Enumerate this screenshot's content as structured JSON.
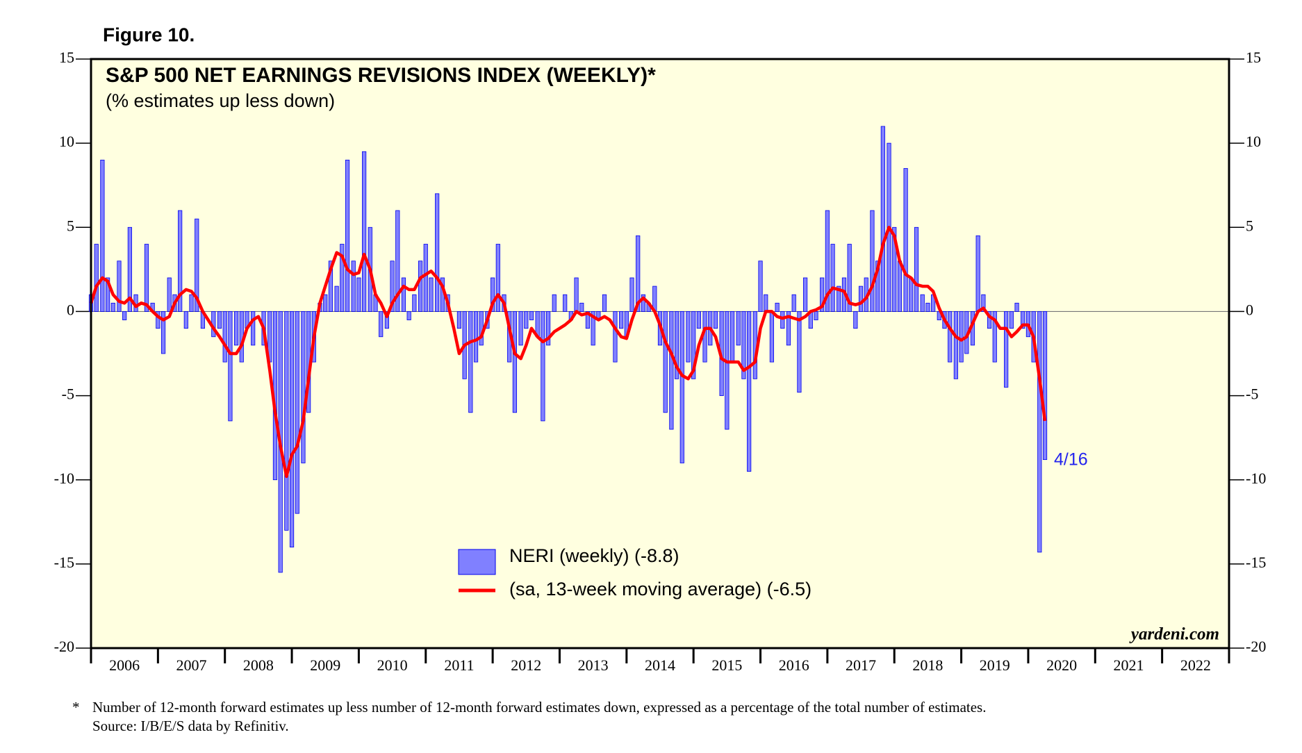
{
  "chart_data": {
    "type": "combo",
    "figure_label": "Figure 10.",
    "title": "S&P 500 NET EARNINGS REVISIONS INDEX (WEEKLY)*",
    "subtitle": "(% estimates up less down)",
    "annotation": "4/16",
    "credit": "yardeni.com",
    "footnote": [
      "*",
      "Number of 12-month forward estimates up less number of 12-month forward estimates down, expressed as a percentage of the total number of estimates.",
      "Source: I/B/E/S data by Refinitiv."
    ],
    "background": "#ffffe0",
    "ylim": [
      -20,
      15
    ],
    "yticks": [
      -20,
      -15,
      -10,
      -5,
      0,
      5,
      10,
      15
    ],
    "xlim": [
      2006,
      2023
    ],
    "xticks": [
      2006,
      2007,
      2008,
      2009,
      2010,
      2011,
      2012,
      2013,
      2014,
      2015,
      2016,
      2017,
      2018,
      2019,
      2020,
      2021,
      2022,
      2023
    ],
    "year_labels": [
      {
        "value": 2006.5,
        "label": "2006"
      },
      {
        "value": 2007.5,
        "label": "2007"
      },
      {
        "value": 2008.5,
        "label": "2008"
      },
      {
        "value": 2009.5,
        "label": "2009"
      },
      {
        "value": 2010.5,
        "label": "2010"
      },
      {
        "value": 2011.5,
        "label": "2011"
      },
      {
        "value": 2012.5,
        "label": "2012"
      },
      {
        "value": 2013.5,
        "label": "2013"
      },
      {
        "value": 2014.5,
        "label": "2014"
      },
      {
        "value": 2015.5,
        "label": "2015"
      },
      {
        "value": 2016.5,
        "label": "2016"
      },
      {
        "value": 2017.5,
        "label": "2017"
      },
      {
        "value": 2018.5,
        "label": "2018"
      },
      {
        "value": 2019.5,
        "label": "2019"
      },
      {
        "value": 2020.5,
        "label": "2020"
      },
      {
        "value": 2021.5,
        "label": "2021"
      },
      {
        "value": 2022.5,
        "label": "2022"
      }
    ],
    "x": [
      2006.0,
      2006.08,
      2006.17,
      2006.25,
      2006.33,
      2006.42,
      2006.5,
      2006.58,
      2006.67,
      2006.75,
      2006.83,
      2006.92,
      2007.0,
      2007.08,
      2007.17,
      2007.25,
      2007.33,
      2007.42,
      2007.5,
      2007.58,
      2007.67,
      2007.75,
      2007.83,
      2007.92,
      2008.0,
      2008.08,
      2008.17,
      2008.25,
      2008.33,
      2008.42,
      2008.5,
      2008.58,
      2008.67,
      2008.75,
      2008.83,
      2008.92,
      2009.0,
      2009.08,
      2009.17,
      2009.25,
      2009.33,
      2009.42,
      2009.5,
      2009.58,
      2009.67,
      2009.75,
      2009.83,
      2009.92,
      2010.0,
      2010.08,
      2010.17,
      2010.25,
      2010.33,
      2010.42,
      2010.5,
      2010.58,
      2010.67,
      2010.75,
      2010.83,
      2010.92,
      2011.0,
      2011.08,
      2011.17,
      2011.25,
      2011.33,
      2011.42,
      2011.5,
      2011.58,
      2011.67,
      2011.75,
      2011.83,
      2011.92,
      2012.0,
      2012.08,
      2012.17,
      2012.25,
      2012.33,
      2012.42,
      2012.5,
      2012.58,
      2012.67,
      2012.75,
      2012.83,
      2012.92,
      2013.0,
      2013.08,
      2013.17,
      2013.25,
      2013.33,
      2013.42,
      2013.5,
      2013.58,
      2013.67,
      2013.75,
      2013.83,
      2013.92,
      2014.0,
      2014.08,
      2014.17,
      2014.25,
      2014.33,
      2014.42,
      2014.5,
      2014.58,
      2014.67,
      2014.75,
      2014.83,
      2014.92,
      2015.0,
      2015.08,
      2015.17,
      2015.25,
      2015.33,
      2015.42,
      2015.5,
      2015.58,
      2015.67,
      2015.75,
      2015.83,
      2015.92,
      2016.0,
      2016.08,
      2016.17,
      2016.25,
      2016.33,
      2016.42,
      2016.5,
      2016.58,
      2016.67,
      2016.75,
      2016.83,
      2016.92,
      2017.0,
      2017.08,
      2017.17,
      2017.25,
      2017.33,
      2017.42,
      2017.5,
      2017.58,
      2017.67,
      2017.75,
      2017.83,
      2017.92,
      2018.0,
      2018.08,
      2018.17,
      2018.25,
      2018.33,
      2018.42,
      2018.5,
      2018.58,
      2018.67,
      2018.75,
      2018.83,
      2018.92,
      2019.0,
      2019.08,
      2019.17,
      2019.25,
      2019.33,
      2019.42,
      2019.5,
      2019.58,
      2019.67,
      2019.75,
      2019.83,
      2019.92,
      2020.0,
      2020.08,
      2020.17,
      2020.25
    ],
    "series": [
      {
        "name": "NERI (weekly) (-8.8)",
        "type": "bar",
        "color": "#8080ff",
        "edge": "#0000ee",
        "values": [
          1,
          4,
          9,
          2,
          0.5,
          3,
          -0.5,
          5,
          1,
          0,
          4,
          0.5,
          -1,
          -2.5,
          2,
          1,
          6,
          -1,
          1,
          5.5,
          -1,
          0,
          -1.5,
          -1,
          -3,
          -6.5,
          -2,
          -3,
          -1,
          -2,
          0,
          -2,
          -3,
          -10,
          -15.5,
          -13,
          -14,
          -12,
          -9,
          -6,
          -3,
          0.5,
          1,
          3,
          1.5,
          4,
          9,
          3,
          2,
          9.5,
          5,
          1,
          -1.5,
          -1,
          3,
          6,
          2,
          -0.5,
          1,
          3,
          4,
          2,
          7,
          2,
          1,
          0,
          -1,
          -4,
          -6,
          -3,
          -2,
          -1,
          2,
          4,
          1,
          -3,
          -6,
          -2,
          -1,
          -0.5,
          -1.5,
          -6.5,
          -2,
          1,
          0,
          1,
          -0.5,
          2,
          0.5,
          -1,
          -2,
          -0.5,
          1,
          0,
          -3,
          -1,
          -1.5,
          2,
          4.5,
          1,
          0.5,
          1.5,
          -2,
          -6,
          -7,
          -4,
          -9,
          -3,
          -4,
          -1,
          -3,
          -2,
          -1,
          -5,
          -7,
          -3,
          -2,
          -4,
          -9.5,
          -4,
          3,
          1,
          -3,
          0.5,
          -1,
          -2,
          1,
          -4.8,
          2,
          -1,
          -0.5,
          2,
          6,
          4,
          1.5,
          2,
          4,
          -1,
          1.5,
          2,
          6,
          3,
          11,
          10,
          5,
          3,
          8.5,
          2,
          5,
          1,
          0.5,
          1,
          -0.5,
          -1,
          -3,
          -4,
          -3,
          -2.5,
          -2,
          4.5,
          1,
          -1,
          -3,
          0,
          -4.5,
          -1,
          0.5,
          -1,
          -1.5,
          -3,
          -14.3,
          -8.8
        ]
      },
      {
        "name": "(sa, 13-week moving average) (-6.5)",
        "type": "line",
        "color": "#ff0000",
        "values": [
          0.5,
          1.5,
          2,
          1.8,
          1,
          0.6,
          0.5,
          0.8,
          0.3,
          0.5,
          0.4,
          0,
          -0.3,
          -0.5,
          -0.3,
          0.5,
          1,
          1.3,
          1.2,
          0.8,
          0,
          -0.5,
          -1,
          -1.5,
          -2,
          -2.5,
          -2.5,
          -2,
          -1,
          -0.5,
          -0.3,
          -1,
          -3.5,
          -6,
          -8,
          -9.8,
          -8.5,
          -8,
          -6.5,
          -4,
          -1.5,
          0.5,
          1.5,
          2.5,
          3.5,
          3.3,
          2.5,
          2.2,
          2.3,
          3.4,
          2.5,
          1,
          0.5,
          -0.3,
          0.5,
          1,
          1.5,
          1.3,
          1.3,
          2,
          2.2,
          2.4,
          2,
          1.5,
          0.5,
          -1,
          -2.5,
          -2,
          -1.8,
          -1.7,
          -1.5,
          -0.5,
          0.5,
          1,
          0.5,
          -1,
          -2.5,
          -2.8,
          -2,
          -1,
          -1.5,
          -1.8,
          -1.6,
          -1.2,
          -1,
          -0.8,
          -0.5,
          0,
          -0.2,
          -0.1,
          -0.3,
          -0.5,
          -0.3,
          -0.5,
          -1,
          -1.5,
          -1.6,
          -0.5,
          0.5,
          0.8,
          0.5,
          0,
          -0.8,
          -1.8,
          -2.5,
          -3.3,
          -3.8,
          -4,
          -3.5,
          -2,
          -1,
          -1,
          -1.5,
          -2.8,
          -3,
          -3,
          -3,
          -3.5,
          -3.3,
          -3,
          -1,
          0,
          0,
          -0.3,
          -0.4,
          -0.3,
          -0.4,
          -0.5,
          -0.3,
          0,
          0.1,
          0.3,
          1,
          1.4,
          1.3,
          1.2,
          0.5,
          0.4,
          0.5,
          0.8,
          1.5,
          2.5,
          4,
          5,
          4.5,
          3,
          2.2,
          2,
          1.6,
          1.5,
          1.5,
          1.2,
          0.2,
          -0.5,
          -1,
          -1.5,
          -1.7,
          -1.5,
          -0.7,
          0,
          0.2,
          -0.3,
          -0.5,
          -1,
          -1,
          -1.5,
          -1.2,
          -0.8,
          -0.8,
          -1.5,
          -4,
          -6.5
        ]
      }
    ]
  }
}
